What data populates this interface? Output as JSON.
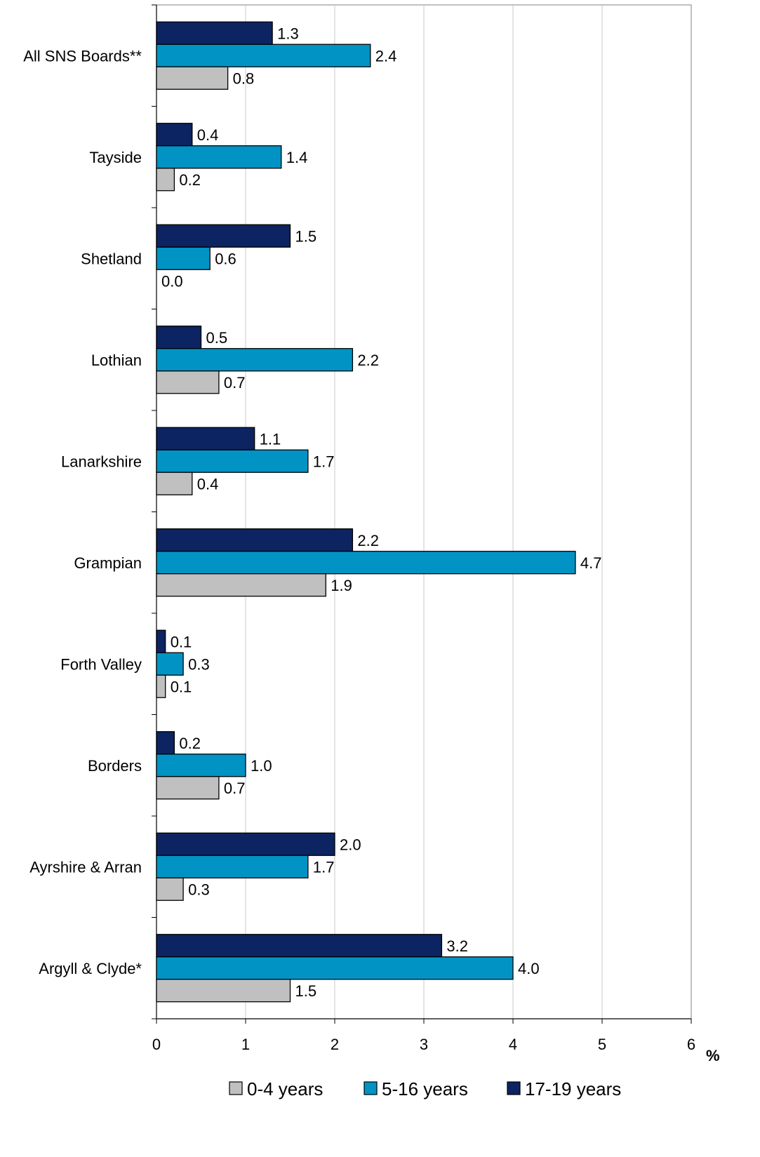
{
  "chart_data": {
    "type": "bar",
    "orientation": "horizontal",
    "categories": [
      "All SNS Boards**",
      "Tayside",
      "Shetland",
      "Lothian",
      "Lanarkshire",
      "Grampian",
      "Forth Valley",
      "Borders",
      "Ayrshire & Arran",
      "Argyll & Clyde*"
    ],
    "series": [
      {
        "name": "0-4 years",
        "color": "#c0c0c0",
        "values": [
          0.8,
          0.2,
          0.0,
          0.7,
          0.4,
          1.9,
          0.1,
          0.7,
          0.3,
          1.5
        ],
        "labels": [
          "0.8",
          "0.2",
          "0.0",
          "0.7",
          "0.4",
          "1.9",
          "0.1",
          "0.7",
          "0.3",
          "1.5"
        ]
      },
      {
        "name": "5-16 years",
        "color": "#0093c4",
        "values": [
          2.4,
          1.4,
          0.6,
          2.2,
          1.7,
          4.7,
          0.3,
          1.0,
          1.7,
          4.0
        ],
        "labels": [
          "2.4",
          "1.4",
          "0.6",
          "2.2",
          "1.7",
          "4.7",
          "0.3",
          "1.0",
          "1.7",
          "4.0"
        ]
      },
      {
        "name": "17-19 years",
        "color": "#0c2461",
        "values": [
          1.3,
          0.4,
          1.5,
          0.5,
          1.1,
          2.2,
          0.1,
          0.2,
          2.0,
          3.2
        ],
        "labels": [
          "1.3",
          "0.4",
          "1.5",
          "0.5",
          "1.1",
          "2.2",
          "0.1",
          "0.2",
          "2.0",
          "3.2"
        ]
      }
    ],
    "xlim": [
      0,
      6
    ],
    "x_ticks": [
      "0",
      "1",
      "2",
      "3",
      "4",
      "5",
      "6"
    ],
    "xlabel": "%",
    "grid": "vertical",
    "legend_position": "bottom"
  }
}
